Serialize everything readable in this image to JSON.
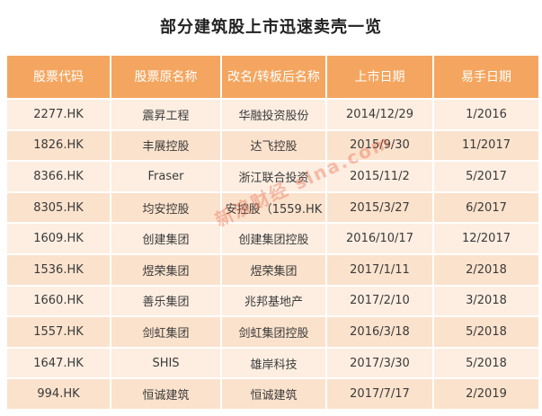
{
  "title": "部分建筑股上市迅速卖壳一览",
  "headers": [
    "股票代码",
    "股票原名称",
    "改名/转板后名称",
    "上市日期",
    "易手日期"
  ],
  "rows": [
    [
      "2277.HK",
      "震昇工程",
      "华融投资股份",
      "2014/12/29",
      "1/2016"
    ],
    [
      "1826.HK",
      "丰展控股",
      "达飞控股",
      "2015/9/30",
      "11/2017"
    ],
    [
      "8366.HK",
      "Fraser",
      "浙江联合投资",
      "2015/11/2",
      "5/2017"
    ],
    [
      "8305.HK",
      "均安控股",
      "安控股（1559.HK",
      "2015/3/27",
      "6/2017"
    ],
    [
      "1609.HK",
      "创建集团",
      "创建集团控股",
      "2016/10/17",
      "12/2017"
    ],
    [
      "1536.HK",
      "煜荣集团",
      "煜荣集团",
      "2017/1/11",
      "2/2018"
    ],
    [
      "1660.HK",
      "善乐集团",
      "兆邦基地产",
      "2017/2/10",
      "3/2018"
    ],
    [
      "1557.HK",
      "剑虹集团",
      "剑虹集团控股",
      "2016/3/18",
      "5/2018"
    ],
    [
      "1647.HK",
      "SHIS",
      "雄岸科技",
      "2017/3/30",
      "5/2018"
    ],
    [
      "994.HK",
      "恒诚建筑",
      "恒诚建筑",
      "2017/7/17",
      "2/2019"
    ]
  ],
  "watermark": "新浪财经 sina.com"
}
